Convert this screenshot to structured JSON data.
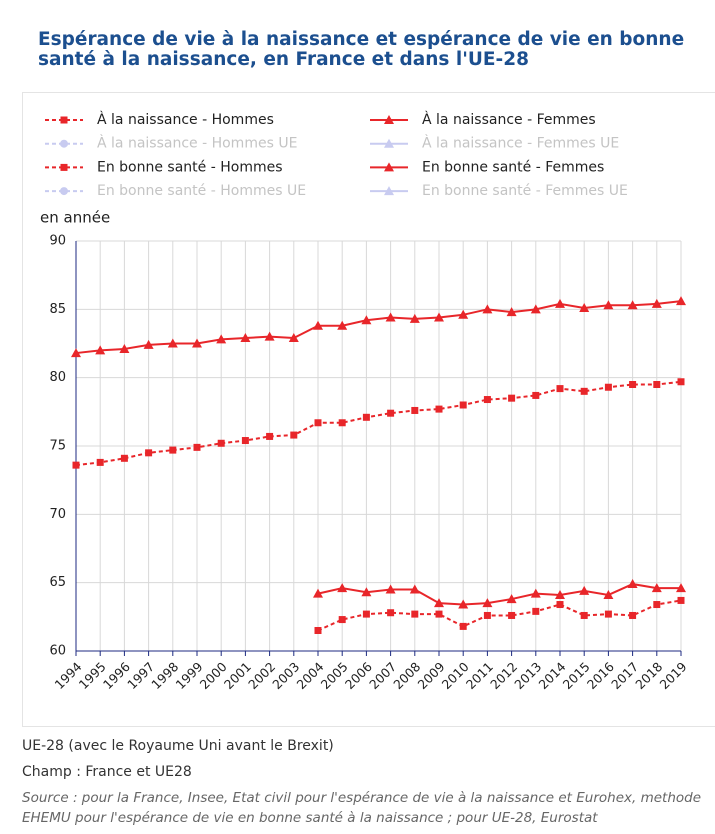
{
  "title": "Espérance de vie à la naissance et espérance de vie en bonne santé à la naissance, en France et dans l'UE-28",
  "notes": [
    "UE-28 (avec le Royaume Uni avant le Brexit)",
    "Champ : France et UE28"
  ],
  "source": "Source : pour la France, Insee, Etat civil pour l'espérance de vie à la naissance et Eurohex, methode EHEMU pour l'espérance de vie en bonne santé à la naissance ; pour UE-28, Eurostat",
  "chart_data": {
    "type": "line",
    "y_label": "en année",
    "categories": [
      "1994",
      "1995",
      "1996",
      "1997",
      "1998",
      "1999",
      "2000",
      "2001",
      "2002",
      "2003",
      "2004",
      "2005",
      "2006",
      "2007",
      "2008",
      "2009",
      "2010",
      "2011",
      "2012",
      "2013",
      "2014",
      "2015",
      "2016",
      "2017",
      "2018",
      "2019"
    ],
    "ylim": [
      60,
      90
    ],
    "yticks": [
      60,
      65,
      70,
      75,
      80,
      85,
      90
    ],
    "grid": true,
    "series": [
      {
        "name": "À la naissance - Hommes",
        "color": "#e8262a",
        "dash": true,
        "marker": "square",
        "visible": true,
        "values": [
          73.6,
          73.8,
          74.1,
          74.5,
          74.7,
          74.9,
          75.2,
          75.4,
          75.7,
          75.8,
          76.7,
          76.7,
          77.1,
          77.4,
          77.6,
          77.7,
          78.0,
          78.4,
          78.5,
          78.7,
          79.2,
          79.0,
          79.3,
          79.5,
          79.5,
          79.7
        ]
      },
      {
        "name": "À la naissance - Femmes",
        "color": "#e8262a",
        "dash": false,
        "marker": "triangle",
        "visible": true,
        "values": [
          81.8,
          82.0,
          82.1,
          82.4,
          82.5,
          82.5,
          82.8,
          82.9,
          83.0,
          82.9,
          83.8,
          83.8,
          84.2,
          84.4,
          84.3,
          84.4,
          84.6,
          85.0,
          84.8,
          85.0,
          85.4,
          85.1,
          85.3,
          85.3,
          85.4,
          85.6
        ]
      },
      {
        "name": "À la naissance - Hommes UE",
        "color": "#c8cbf0",
        "dash": true,
        "marker": "circle",
        "visible": false,
        "values": [
          null,
          null,
          null,
          null,
          null,
          null,
          null,
          null,
          null,
          null,
          null,
          null,
          null,
          null,
          null,
          null,
          null,
          null,
          null,
          null,
          null,
          null,
          null,
          null,
          null,
          null
        ]
      },
      {
        "name": "À la naissance - Femmes UE",
        "color": "#c8cbf0",
        "dash": false,
        "marker": "triangle",
        "visible": false,
        "values": [
          null,
          null,
          null,
          null,
          null,
          null,
          null,
          null,
          null,
          null,
          null,
          null,
          null,
          null,
          null,
          null,
          null,
          null,
          null,
          null,
          null,
          null,
          null,
          null,
          null,
          null
        ]
      },
      {
        "name": "En bonne santé - Hommes",
        "color": "#e8262a",
        "dash": true,
        "marker": "square",
        "visible": true,
        "values": [
          null,
          null,
          null,
          null,
          null,
          null,
          null,
          null,
          null,
          null,
          61.5,
          62.3,
          62.7,
          62.8,
          62.7,
          62.7,
          61.8,
          62.6,
          62.6,
          62.9,
          63.4,
          62.6,
          62.7,
          62.6,
          63.4,
          63.7
        ]
      },
      {
        "name": "En bonne santé - Femmes",
        "color": "#e8262a",
        "dash": false,
        "marker": "triangle",
        "visible": true,
        "values": [
          null,
          null,
          null,
          null,
          null,
          null,
          null,
          null,
          null,
          null,
          64.2,
          64.6,
          64.3,
          64.5,
          64.5,
          63.5,
          63.4,
          63.5,
          63.8,
          64.2,
          64.1,
          64.4,
          64.1,
          64.9,
          64.6,
          64.6
        ]
      },
      {
        "name": "En bonne santé - Hommes UE",
        "color": "#c8cbf0",
        "dash": true,
        "marker": "circle",
        "visible": false,
        "values": [
          null,
          null,
          null,
          null,
          null,
          null,
          null,
          null,
          null,
          null,
          null,
          null,
          null,
          null,
          null,
          null,
          null,
          null,
          null,
          null,
          null,
          null,
          null,
          null,
          null,
          null
        ]
      },
      {
        "name": "En bonne santé - Femmes UE",
        "color": "#c8cbf0",
        "dash": false,
        "marker": "triangle",
        "visible": false,
        "values": [
          null,
          null,
          null,
          null,
          null,
          null,
          null,
          null,
          null,
          null,
          null,
          null,
          null,
          null,
          null,
          null,
          null,
          null,
          null,
          null,
          null,
          null,
          null,
          null,
          null,
          null
        ]
      }
    ]
  }
}
